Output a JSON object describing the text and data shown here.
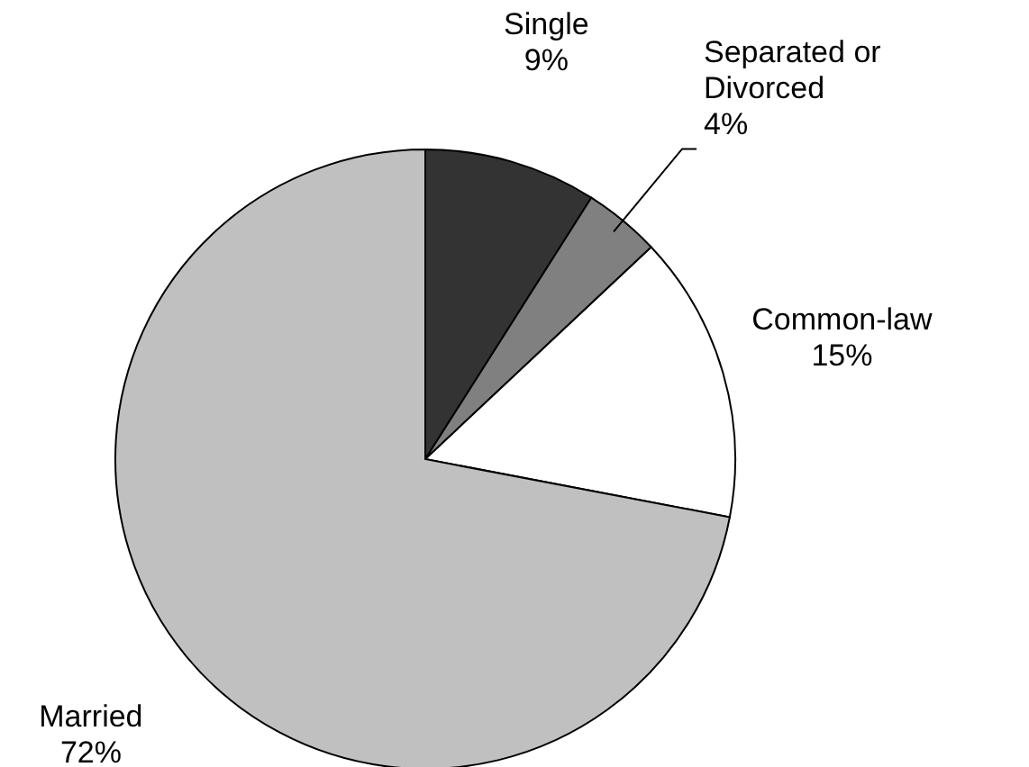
{
  "chart_data": {
    "type": "pie",
    "categories": [
      "Single",
      "Separated or Divorced",
      "Common-law",
      "Married"
    ],
    "values": [
      9,
      4,
      15,
      72
    ],
    "colors": [
      "#333333",
      "#808080",
      "#ffffff",
      "#c0c0c0"
    ],
    "value_labels": [
      "9%",
      "4%",
      "15%",
      "72%"
    ]
  }
}
